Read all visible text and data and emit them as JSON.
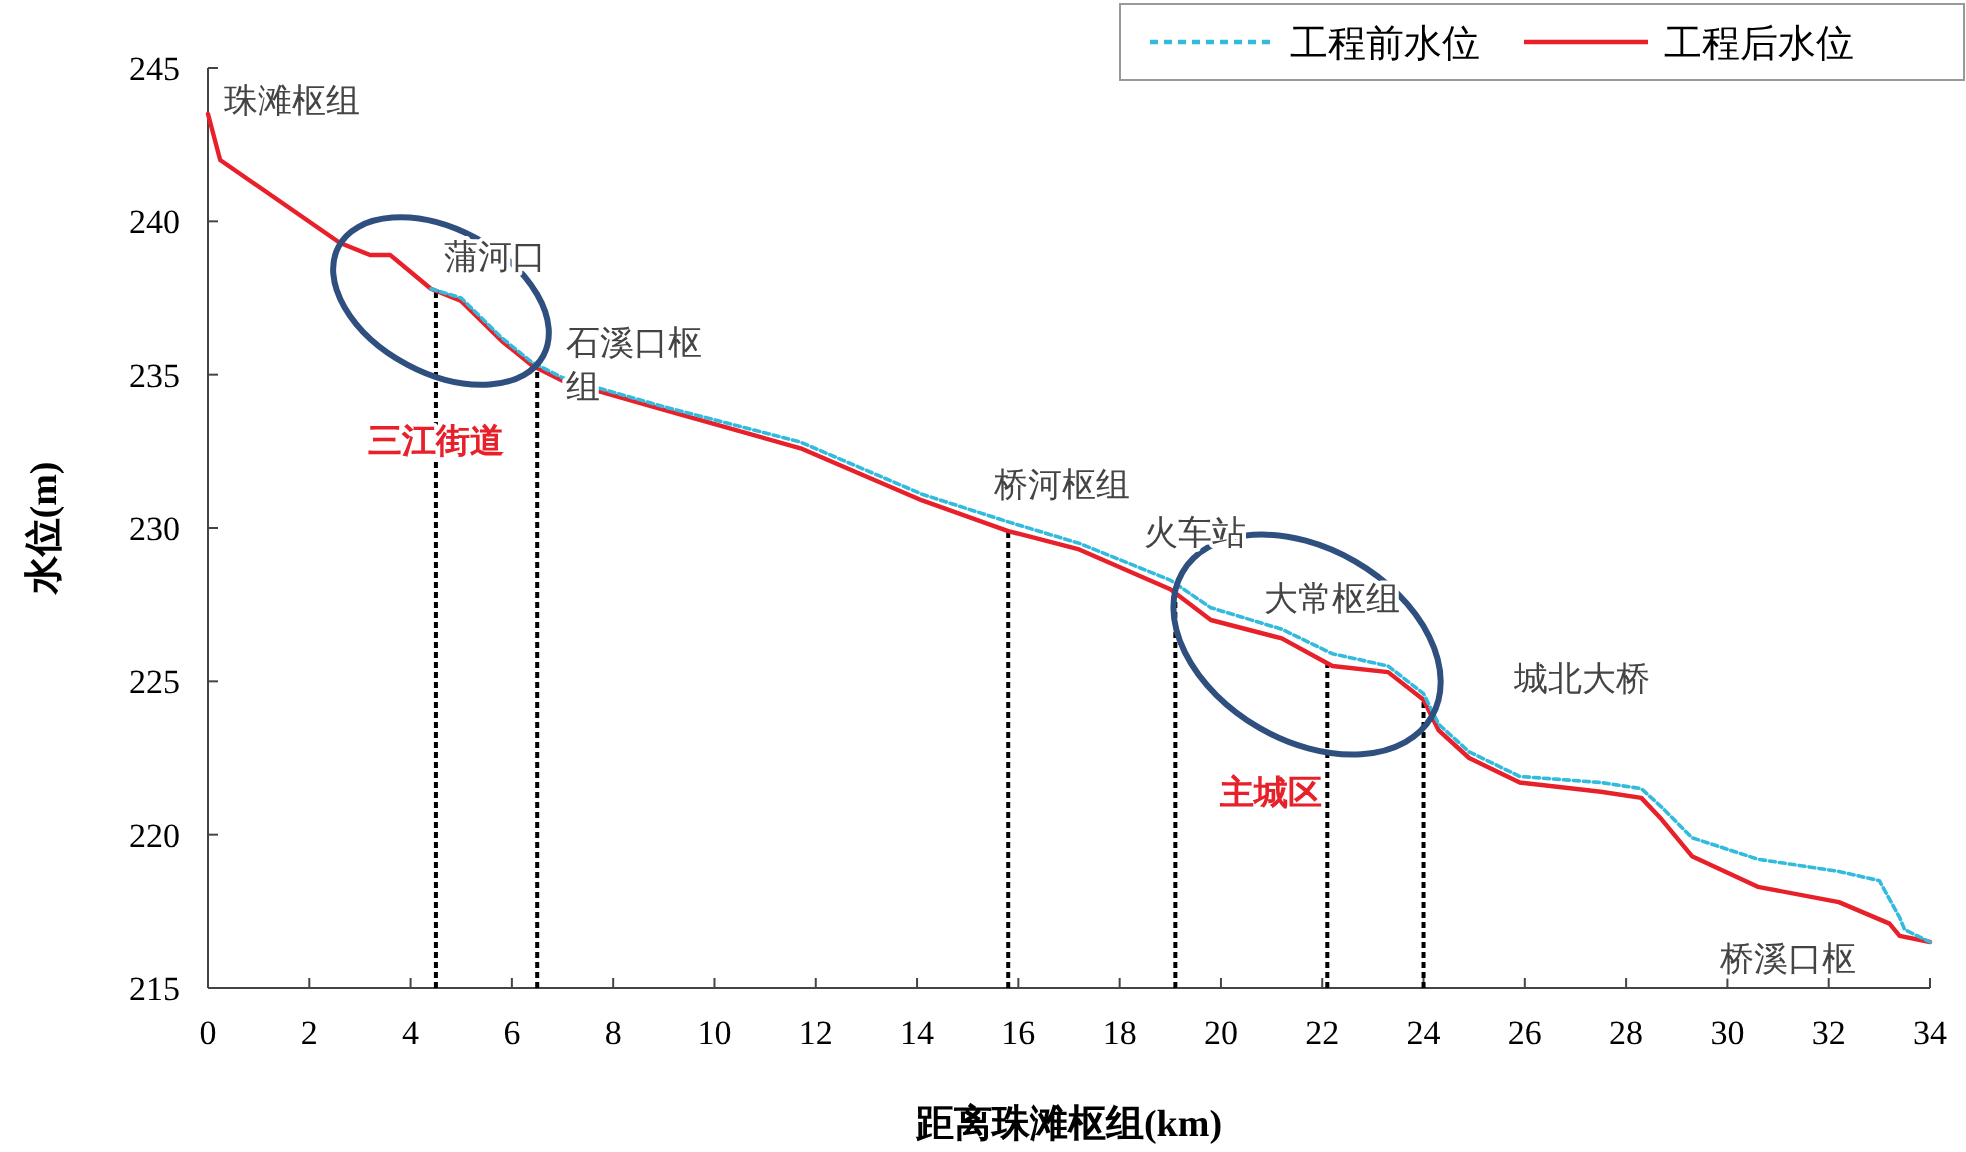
{
  "chart_data": {
    "type": "line",
    "xlabel": "距离珠滩枢组(km)",
    "ylabel": "水位(m)",
    "xlim": [
      0,
      34
    ],
    "xticks": [
      0,
      2,
      4,
      6,
      8,
      10,
      12,
      14,
      16,
      18,
      20,
      22,
      24,
      26,
      28,
      30,
      32,
      34
    ],
    "ylim": [
      215,
      245
    ],
    "yticks": [
      215,
      220,
      225,
      230,
      235,
      240,
      245
    ],
    "grid": false,
    "legend": "top right",
    "marker": "none",
    "series": [
      {
        "name": "工程前水位",
        "color": "#33bbdd",
        "line_style": "dashed",
        "x": [
          4.4,
          5.0,
          5.8,
          6.4,
          7.0,
          8.9,
          11.7,
          14.1,
          15.8,
          17.2,
          19.0,
          19.8,
          21.2,
          22.2,
          23.3,
          24.0,
          24.3,
          24.9,
          25.9,
          27.5,
          28.3,
          28.7,
          29.3,
          30.6,
          32.2,
          33.0,
          33.4,
          33.5,
          34.0
        ],
        "values": [
          237.8,
          237.5,
          236.2,
          235.4,
          234.9,
          234.0,
          232.8,
          231.1,
          230.2,
          229.5,
          228.3,
          227.4,
          226.7,
          225.9,
          225.5,
          224.6,
          223.6,
          222.7,
          221.9,
          221.7,
          221.5,
          220.9,
          219.9,
          219.2,
          218.8,
          218.5,
          217.3,
          216.9,
          216.5
        ]
      },
      {
        "name": "工程后水位",
        "color": "#e8202a",
        "line_style": "solid",
        "x": [
          0,
          0.24,
          2.6,
          3.2,
          3.6,
          4.4,
          5.0,
          5.8,
          6.4,
          7.0,
          8.9,
          11.7,
          14.1,
          15.8,
          17.2,
          19.0,
          19.8,
          21.2,
          22.2,
          23.3,
          24.0,
          24.3,
          24.9,
          25.9,
          27.5,
          28.3,
          28.7,
          29.3,
          30.6,
          32.2,
          33.2,
          33.4,
          34.0
        ],
        "values": [
          243.5,
          242.0,
          239.3,
          238.9,
          238.9,
          237.8,
          237.4,
          236.1,
          235.3,
          234.8,
          233.9,
          232.6,
          230.9,
          229.9,
          229.3,
          228.0,
          227.0,
          226.4,
          225.5,
          225.3,
          224.4,
          223.4,
          222.5,
          221.7,
          221.4,
          221.2,
          220.5,
          219.3,
          218.3,
          217.8,
          217.1,
          216.7,
          216.5
        ]
      }
    ],
    "ref_lines": [
      {
        "axis": "x",
        "value": 4.5,
        "color": "#000000",
        "line_style": "dashed"
      },
      {
        "axis": "x",
        "value": 6.5,
        "color": "#000000",
        "line_style": "dashed"
      },
      {
        "axis": "x",
        "value": 15.8,
        "color": "#000000",
        "line_style": "dashed"
      },
      {
        "axis": "x",
        "value": 19.1,
        "color": "#000000",
        "line_style": "dashed"
      },
      {
        "axis": "x",
        "value": 22.1,
        "color": "#000000",
        "line_style": "dashed"
      },
      {
        "axis": "x",
        "value": 24.0,
        "color": "#000000",
        "line_style": "dashed"
      }
    ],
    "annotations": [
      "珠滩枢组",
      "蒲河口",
      "石溪口枢组",
      "三江街道",
      "桥河枢组",
      "火车站",
      "大常枢组",
      "城北大桥",
      "主城区",
      "桥溪口枢"
    ]
  }
}
